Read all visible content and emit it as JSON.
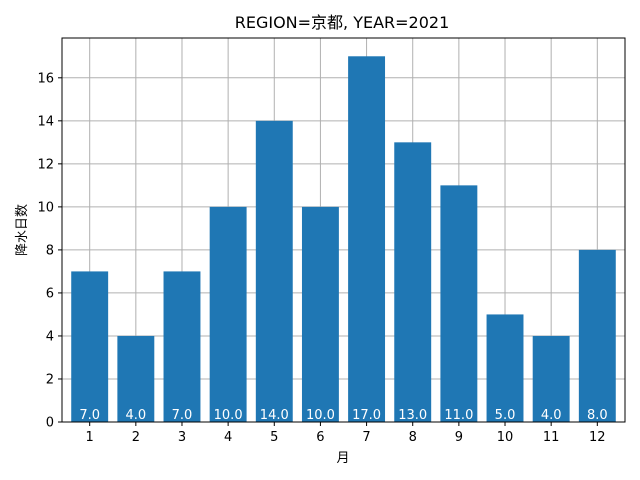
{
  "chart_data": {
    "type": "bar",
    "title": "REGION=京都, YEAR=2021",
    "xlabel": "月",
    "ylabel": "降水日数",
    "categories": [
      "1",
      "2",
      "3",
      "4",
      "5",
      "6",
      "7",
      "8",
      "9",
      "10",
      "11",
      "12"
    ],
    "values": [
      7,
      4,
      7,
      10,
      14,
      10,
      17,
      13,
      11,
      5,
      4,
      8
    ],
    "data_labels": [
      "7.0",
      "4.0",
      "7.0",
      "10.0",
      "14.0",
      "10.0",
      "17.0",
      "13.0",
      "11.0",
      "5.0",
      "4.0",
      "8.0"
    ],
    "yticks": [
      0,
      2,
      4,
      6,
      8,
      10,
      12,
      14,
      16
    ],
    "ylim": [
      0,
      17.85
    ],
    "grid": true,
    "bar_color": "#1f77b4",
    "label_color": "#ffffff"
  }
}
